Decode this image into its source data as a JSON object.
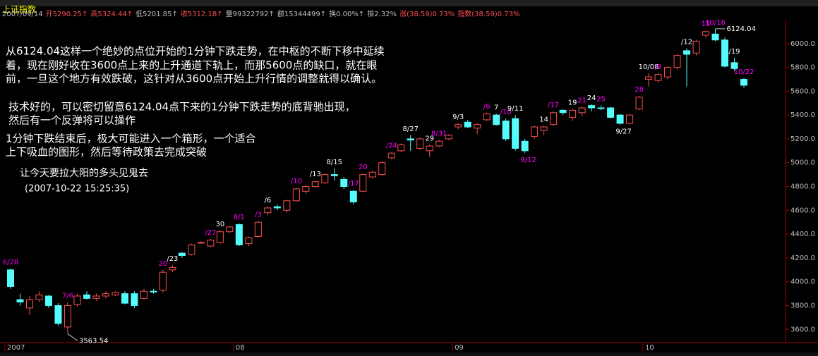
{
  "chart_data": {
    "type": "candlestick",
    "title": "上证指数",
    "info": [
      {
        "text": "2007/09/14",
        "color": "#c0c0c0"
      },
      {
        "text": "开5290.25↑",
        "color": "#ff5050"
      },
      {
        "text": "高5324.44↑",
        "color": "#ff5050"
      },
      {
        "text": "低5201.85↑",
        "color": "#c0c0c0"
      },
      {
        "text": "收5312.18↑",
        "color": "#ff5050"
      },
      {
        "text": "量99322792↑",
        "color": "#c0c0c0"
      },
      {
        "text": "额15344499↑",
        "color": "#c0c0c0"
      },
      {
        "text": "换0.00%↑",
        "color": "#c0c0c0"
      },
      {
        "text": "振2.32%",
        "color": "#c0c0c0"
      },
      {
        "text": "涨(38.59)0.73%",
        "color": "#ff5050"
      },
      {
        "text": "指数(38.59)0.73%",
        "color": "#ff5050"
      }
    ],
    "annotations": [
      "从6124.04这样一个绝妙的点位开始的1分钟下跌走势，在中枢的不断下移中延续",
      "着，现在刚好收在3600点上来的上升通道下轨上，而那5600点的缺口，就在眼",
      "前，一旦这个地方有效跌破，这针对从3600点开始上升行情的调整就得以确认。",
      "技术好的，可以密切留意6124.04点下来的1分钟下跌走势的底背驰出现，",
      "然后有一个反弹将可以操作",
      "1分钟下跌结束后，极大可能进入一个箱形，一个适合",
      "上下吸血的图形，然后等待政策去完成突破",
      "让今天要拉大阳的多头见鬼去",
      "(2007-10-22 15:25:35)"
    ],
    "categories": [
      "2007",
      null,
      null,
      null,
      null,
      null,
      null,
      null,
      null,
      null,
      null,
      null,
      null,
      null,
      null,
      null,
      null,
      null,
      null,
      null,
      null,
      null,
      null,
      null,
      "08",
      null,
      null,
      null,
      null,
      null,
      null,
      null,
      null,
      null,
      null,
      null,
      null,
      null,
      null,
      null,
      null,
      null,
      null,
      null,
      null,
      null,
      null,
      "09",
      null,
      null,
      null,
      null,
      null,
      null,
      null,
      null,
      null,
      null,
      null,
      null,
      null,
      null,
      null,
      null,
      null,
      null,
      null,
      "10",
      null,
      null,
      null,
      null,
      null,
      null,
      null,
      null,
      null,
      null
    ],
    "open": [
      4100,
      3850,
      3780,
      3850,
      3880,
      3800,
      3620,
      3810,
      3890,
      3860,
      3880,
      3890,
      3900,
      3900,
      3860,
      3920,
      3930,
      4100,
      4240,
      4230,
      4330,
      4300,
      4330,
      4420,
      4480,
      4320,
      4380,
      4580,
      4630,
      4600,
      4680,
      4760,
      4800,
      4830,
      4900,
      4860,
      4760,
      4760,
      4880,
      4900,
      5040,
      5100,
      5200,
      5120,
      5100,
      5140,
      5200,
      5300,
      5340,
      5290,
      5360,
      5400,
      5350,
      5370,
      5180,
      5220,
      5270,
      5320,
      5440,
      5380,
      5420,
      5480,
      5460,
      5460,
      5400,
      5330,
      5450,
      5700,
      5690,
      5720,
      5800,
      5940,
      5920,
      6070,
      6080,
      6030,
      5840,
      5700
    ],
    "high": [
      4110,
      3900,
      3880,
      3920,
      3890,
      3820,
      3830,
      3900,
      3920,
      3900,
      3920,
      3920,
      3920,
      3920,
      3940,
      3940,
      4100,
      4140,
      4250,
      4320,
      4340,
      4360,
      4430,
      4470,
      4490,
      4380,
      4510,
      4630,
      4650,
      4690,
      4790,
      4810,
      4850,
      4910,
      4950,
      4880,
      4770,
      4910,
      4930,
      5010,
      5090,
      5160,
      5230,
      5210,
      5150,
      5190,
      5240,
      5330,
      5360,
      5330,
      5420,
      5410,
      5370,
      5400,
      5200,
      5310,
      5310,
      5430,
      5450,
      5450,
      5470,
      5490,
      5480,
      5470,
      5410,
      5410,
      5560,
      5750,
      5750,
      5810,
      5910,
      5960,
      6030,
      6110,
      6124.04,
      6050,
      5880,
      5710
    ],
    "low": [
      3940,
      3800,
      3720,
      3830,
      3780,
      3630,
      3563.54,
      3790,
      3850,
      3840,
      3860,
      3880,
      3810,
      3780,
      3850,
      3900,
      3910,
      4080,
      4200,
      4220,
      4320,
      4290,
      4320,
      4410,
      4300,
      4300,
      4370,
      4560,
      4600,
      4580,
      4670,
      4740,
      4790,
      4820,
      4850,
      4780,
      4650,
      4750,
      4870,
      4890,
      5030,
      5090,
      5100,
      5110,
      5050,
      5130,
      5190,
      5280,
      5290,
      5240,
      5350,
      5310,
      5180,
      5100,
      5080,
      5200,
      5230,
      5310,
      5400,
      5350,
      5390,
      5430,
      5440,
      5370,
      5320,
      5320,
      5440,
      5640,
      5670,
      5700,
      5780,
      5640,
      5900,
      6050,
      6020,
      5800,
      5770,
      5630
    ],
    "close": [
      3960,
      3830,
      3850,
      3890,
      3800,
      3650,
      3800,
      3880,
      3860,
      3880,
      3900,
      3910,
      3820,
      3800,
      3920,
      3915,
      4080,
      4120,
      4220,
      4310,
      4330,
      4350,
      4420,
      4460,
      4310,
      4370,
      4500,
      4620,
      4620,
      4680,
      4780,
      4800,
      4840,
      4900,
      4890,
      4800,
      4670,
      4900,
      4920,
      5000,
      5080,
      5150,
      5190,
      5200,
      5140,
      5180,
      5230,
      5320,
      5300,
      5320,
      5410,
      5320,
      5200,
      5120,
      5100,
      5300,
      5300,
      5420,
      5420,
      5440,
      5460,
      5460,
      5455,
      5380,
      5330,
      5400,
      5550,
      5720,
      5740,
      5800,
      5900,
      5910,
      6020,
      6100,
      6030,
      5810,
      5790,
      5650
    ],
    "labels": [
      {
        "text": "6/28",
        "color": "#ff00ff"
      },
      null,
      null,
      null,
      null,
      null,
      {
        "text": "7/6",
        "color": "#ff00ff"
      },
      null,
      null,
      null,
      null,
      null,
      null,
      null,
      null,
      null,
      {
        "text": "20",
        "color": "#ff00ff"
      },
      {
        "text": "/23",
        "color": "#ffffff"
      },
      null,
      null,
      null,
      {
        "text": "/27",
        "color": "#ff00ff"
      },
      {
        "text": "30",
        "color": "#ffffff"
      },
      null,
      {
        "text": "8/1",
        "color": "#ff00ff"
      },
      null,
      {
        "text": "/3",
        "color": "#ff00ff"
      },
      {
        "text": "/6",
        "color": "#ffffff"
      },
      null,
      null,
      {
        "text": "/10",
        "color": "#ff00ff"
      },
      null,
      {
        "text": "/13",
        "color": "#ffffff"
      },
      null,
      {
        "text": "8/15",
        "color": "#ffffff"
      },
      null,
      {
        "text": "/17",
        "color": "#ff00ff"
      },
      {
        "text": "20",
        "color": "#ff00ff"
      },
      null,
      null,
      {
        "text": "/24",
        "color": "#ff00ff"
      },
      null,
      {
        "text": "8/27",
        "color": "#ffffff"
      },
      null,
      {
        "text": "29",
        "color": "#ffffff"
      },
      {
        "text": "8/31",
        "color": "#ff00ff"
      },
      null,
      {
        "text": "9/3",
        "color": "#ffffff"
      },
      null,
      null,
      {
        "text": "/6",
        "color": "#ff00ff"
      },
      {
        "text": "7",
        "color": "#ffffff"
      },
      {
        "text": "/10",
        "color": "#ff00ff"
      },
      {
        "text": "9/11",
        "color": "#ffffff"
      },
      null,
      null,
      {
        "text": "14",
        "color": "#ffffff"
      },
      {
        "text": "/17",
        "color": "#ff00ff"
      },
      null,
      {
        "text": "19",
        "color": "#ffffff"
      },
      {
        "text": "21",
        "color": "#ff00ff"
      },
      {
        "text": "24",
        "color": "#ffffff"
      },
      {
        "text": "25",
        "color": "#ff00ff"
      },
      null,
      null,
      null,
      {
        "text": "28",
        "color": "#ff00ff"
      },
      {
        "text": "10/08",
        "color": "#ffffff"
      },
      {
        "text": "/9",
        "color": "#ff00ff"
      },
      null,
      null,
      {
        "text": "/12",
        "color": "#ffffff"
      },
      null,
      {
        "text": "15",
        "color": "#ff00ff"
      },
      {
        "text": "10/16",
        "color": "#ff00ff"
      },
      null,
      {
        "text": "/19",
        "color": "#ffffff"
      },
      {
        "text": "10/22",
        "color": "#ff00ff"
      }
    ],
    "labels_below": [
      null,
      null,
      null,
      null,
      null,
      null,
      null,
      null,
      null,
      null,
      null,
      null,
      null,
      null,
      null,
      null,
      null,
      null,
      null,
      null,
      null,
      null,
      null,
      null,
      null,
      null,
      null,
      null,
      null,
      null,
      null,
      null,
      null,
      null,
      null,
      null,
      null,
      null,
      null,
      null,
      null,
      null,
      null,
      null,
      null,
      null,
      null,
      null,
      null,
      null,
      null,
      null,
      null,
      null,
      {
        "text": "9/12",
        "color": "#ff00ff"
      },
      null,
      null,
      null,
      null,
      null,
      null,
      null,
      null,
      null,
      {
        "text": "9/27",
        "color": "#ffffff"
      },
      null,
      null,
      null,
      null,
      null,
      null,
      null,
      null,
      null,
      null,
      null,
      null,
      null
    ],
    "value_labels": [
      null,
      null,
      null,
      null,
      null,
      null,
      "3563.54",
      null,
      null,
      null,
      null,
      null,
      null,
      null,
      null,
      null,
      null,
      null,
      null,
      null,
      null,
      null,
      null,
      null,
      null,
      null,
      null,
      null,
      null,
      null,
      null,
      null,
      null,
      null,
      null,
      null,
      null,
      null,
      null,
      null,
      null,
      null,
      null,
      null,
      null,
      null,
      null,
      null,
      null,
      null,
      null,
      null,
      null,
      null,
      null,
      null,
      null,
      null,
      null,
      null,
      null,
      null,
      null,
      null,
      null,
      null,
      null,
      null,
      null,
      null,
      null,
      null,
      null,
      null,
      "6124.04",
      null,
      null,
      null
    ],
    "up_color": "#ff5050",
    "down_color": "#54fcfc",
    "ylim": [
      3495,
      6200
    ],
    "yticks": [
      {
        "value": 3600,
        "label": "3600.0"
      },
      {
        "value": 3800,
        "label": "3800.0"
      },
      {
        "value": 4000,
        "label": "4000.0"
      },
      {
        "value": 4200,
        "label": "4200.0"
      },
      {
        "value": 4400,
        "label": "4400.0"
      },
      {
        "value": 4600,
        "label": "4600.0"
      },
      {
        "value": 4800,
        "label": "4800.0"
      },
      {
        "value": 5000,
        "label": "5000.0"
      },
      {
        "value": 5200,
        "label": "5200.0"
      },
      {
        "value": 5400,
        "label": "5400.0"
      },
      {
        "value": 5600,
        "label": "5600.0"
      },
      {
        "value": 5800,
        "label": "5800.0"
      },
      {
        "value": 6000,
        "label": "6000.0"
      }
    ]
  }
}
